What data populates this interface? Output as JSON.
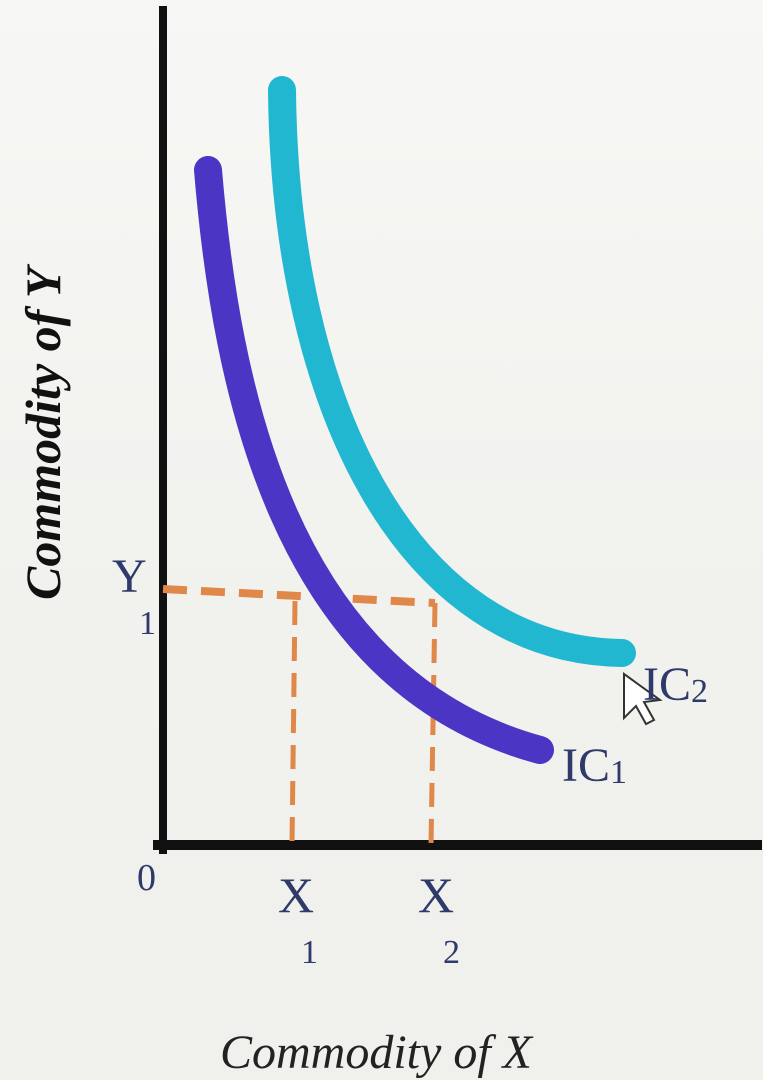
{
  "diagram": {
    "y_axis_title": "Commodity of Y",
    "x_axis_title": "Commodity of X",
    "origin_label": "0",
    "y_tick": {
      "main": "Y",
      "sub": "1"
    },
    "x_ticks": [
      {
        "main": "X",
        "sub": "1"
      },
      {
        "main": "X",
        "sub": "2"
      }
    ],
    "curves": [
      {
        "main": "IC",
        "sub": "1"
      },
      {
        "main": "IC",
        "sub": "2"
      }
    ]
  },
  "colors": {
    "axis": "#111111",
    "ic1": "#4b35c4",
    "ic2": "#22b7d1",
    "guide": "#e0874a",
    "text": "#2f3a6a"
  }
}
